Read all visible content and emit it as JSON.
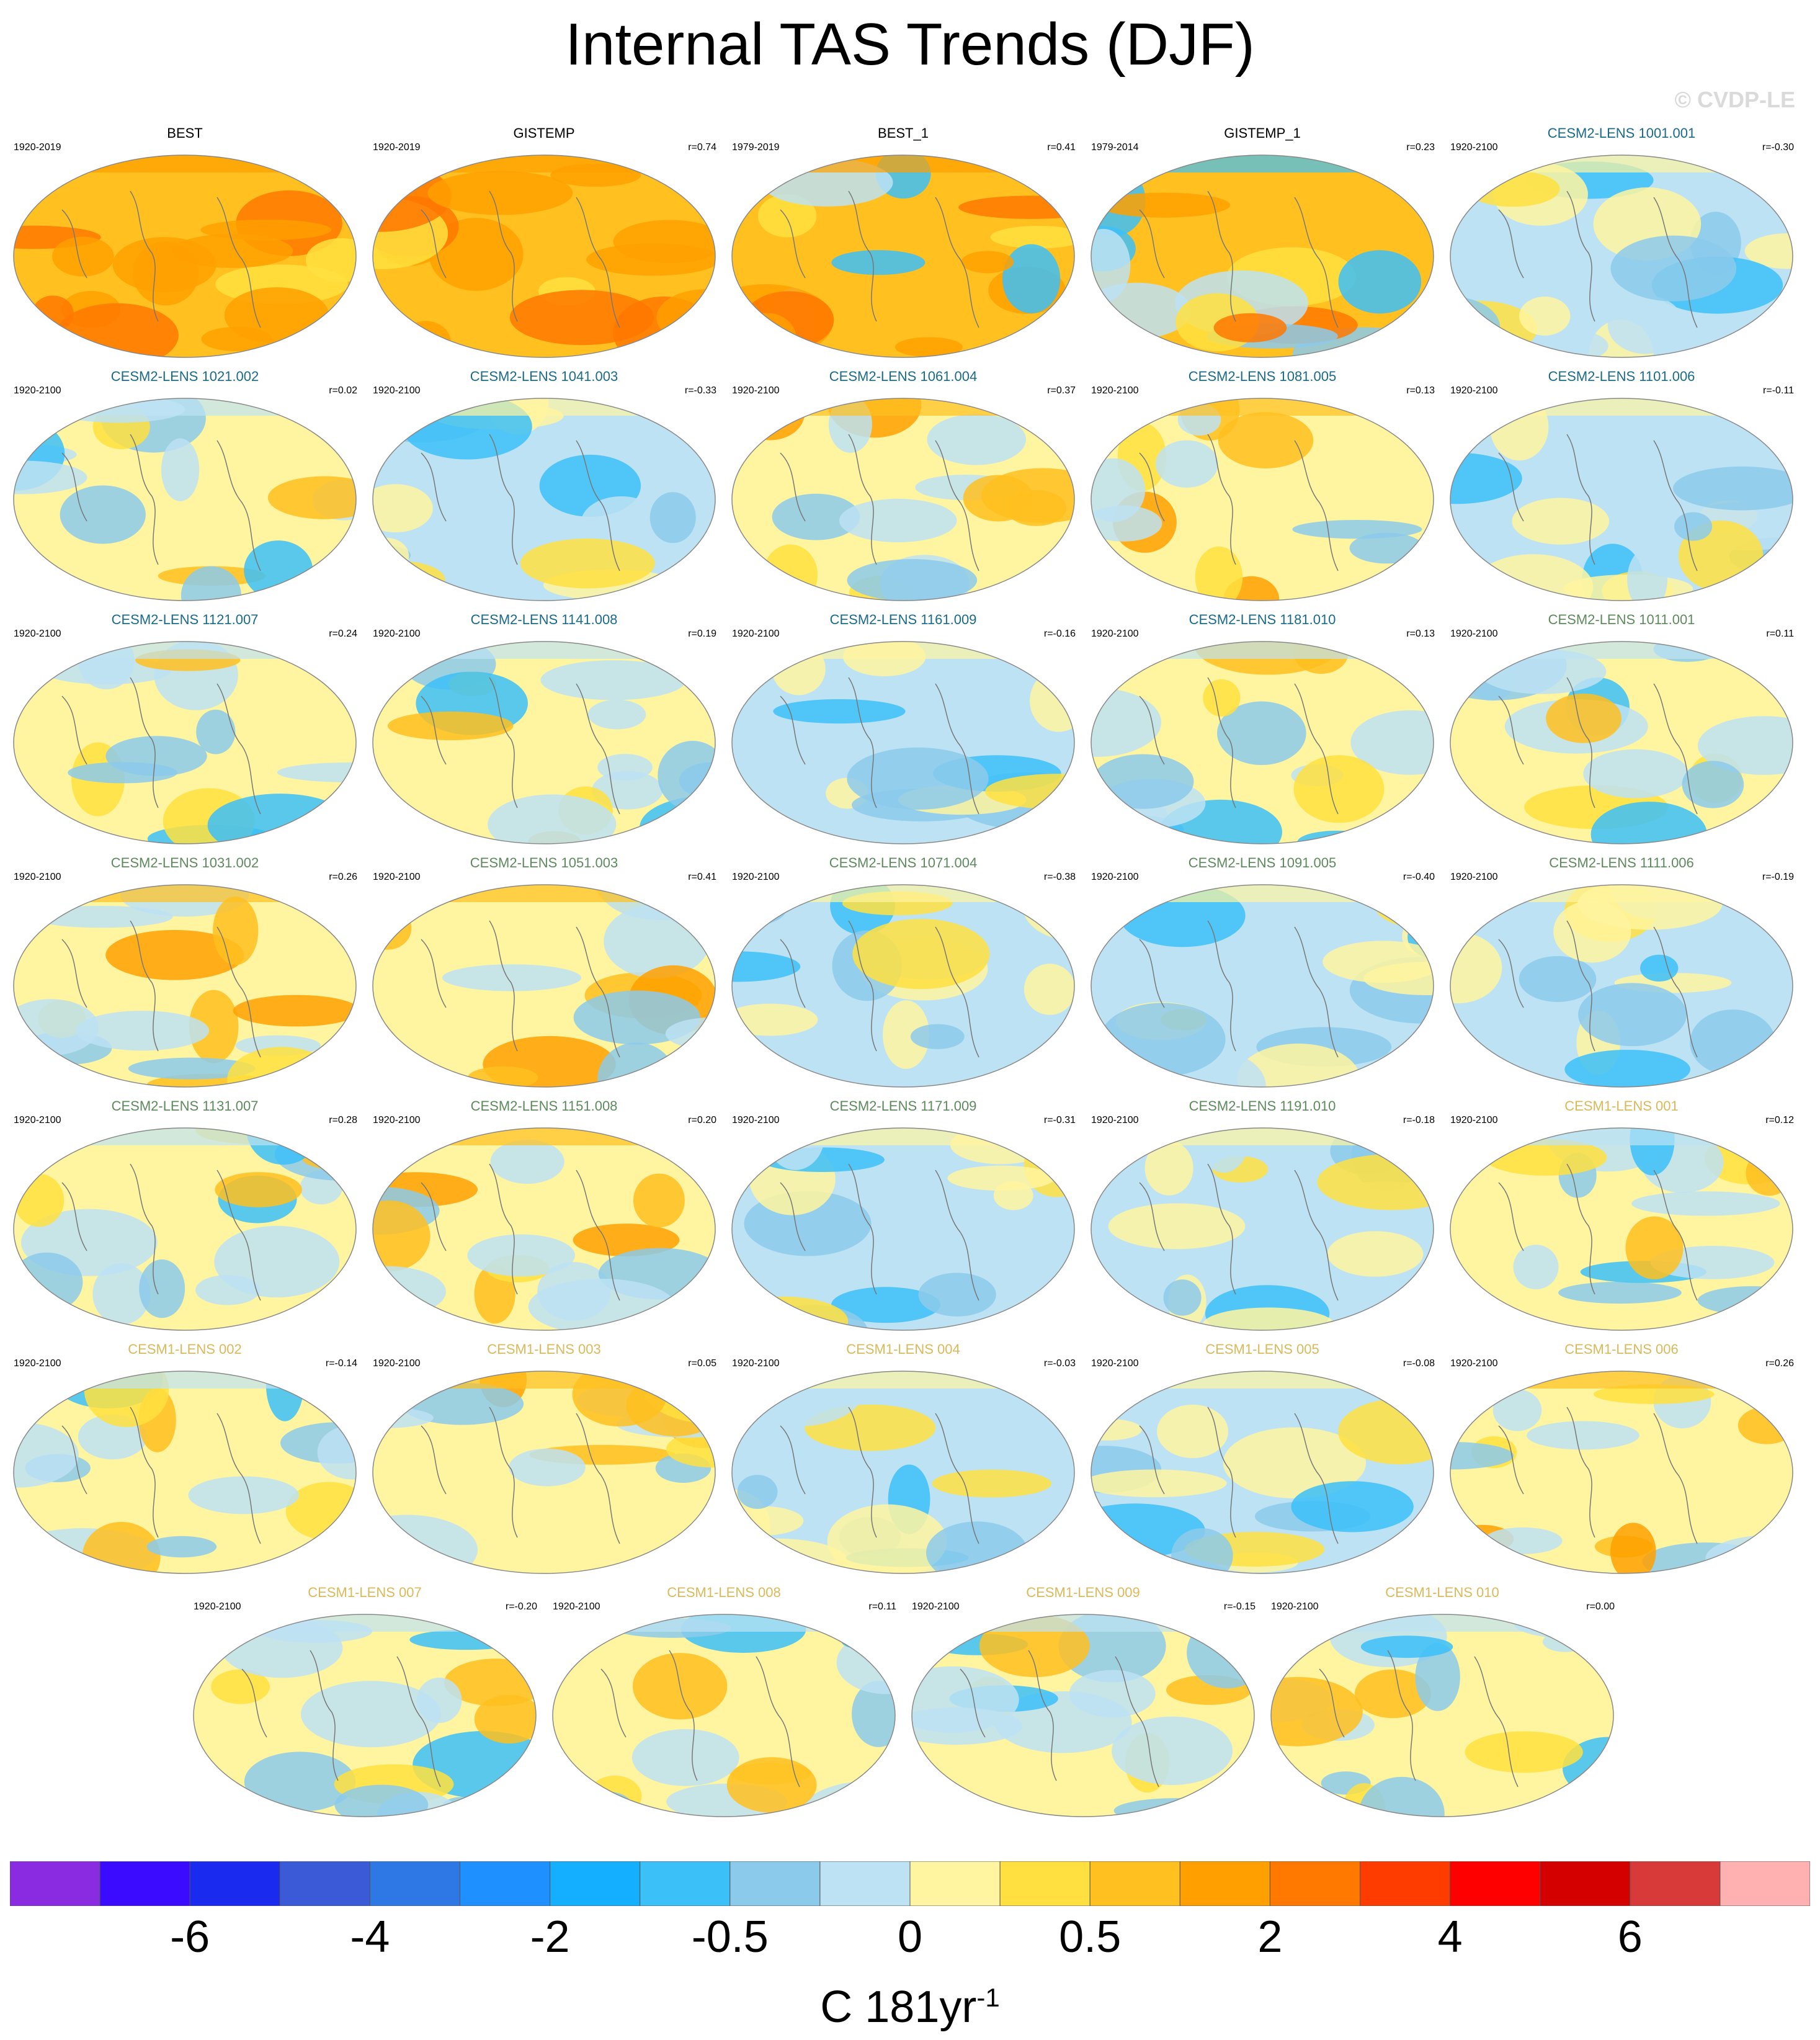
{
  "title": "Internal TAS Trends (DJF)",
  "watermark": "© CVDP-LE",
  "panels": [
    {
      "name": "BEST",
      "period": "1920-2019",
      "corr": "",
      "tc": "#000000",
      "pattern": "warm"
    },
    {
      "name": "GISTEMP",
      "period": "1920-2019",
      "corr": "r=0.74",
      "tc": "#000000",
      "pattern": "warm"
    },
    {
      "name": "BEST_1",
      "period": "1979-2019",
      "corr": "r=0.41",
      "tc": "#000000",
      "pattern": "warm2"
    },
    {
      "name": "GISTEMP_1",
      "period": "1979-2014",
      "corr": "r=0.23",
      "tc": "#000000",
      "pattern": "warm3"
    },
    {
      "name": "CESM2-LENS 1001.001",
      "period": "1920-2100",
      "corr": "r=-0.30",
      "tc": "#1a6a8a",
      "pattern": "cool"
    },
    {
      "name": "CESM2-LENS 1021.002",
      "period": "1920-2100",
      "corr": "r=0.02",
      "tc": "#1a6a8a",
      "pattern": "mixed"
    },
    {
      "name": "CESM2-LENS 1041.003",
      "period": "1920-2100",
      "corr": "r=-0.33",
      "tc": "#1a6a8a",
      "pattern": "cool"
    },
    {
      "name": "CESM2-LENS 1061.004",
      "period": "1920-2100",
      "corr": "r=0.37",
      "tc": "#1a6a8a",
      "pattern": "mixedwarm"
    },
    {
      "name": "CESM2-LENS 1081.005",
      "period": "1920-2100",
      "corr": "r=0.13",
      "tc": "#1a6a8a",
      "pattern": "mixedwarm"
    },
    {
      "name": "CESM2-LENS 1101.006",
      "period": "1920-2100",
      "corr": "r=-0.11",
      "tc": "#1a6a8a",
      "pattern": "cool"
    },
    {
      "name": "CESM2-LENS 1121.007",
      "period": "1920-2100",
      "corr": "r=0.24",
      "tc": "#1a6a8a",
      "pattern": "mixed"
    },
    {
      "name": "CESM2-LENS 1141.008",
      "period": "1920-2100",
      "corr": "r=0.19",
      "tc": "#1a6a8a",
      "pattern": "mixed"
    },
    {
      "name": "CESM2-LENS 1161.009",
      "period": "1920-2100",
      "corr": "r=-0.16",
      "tc": "#1a6a8a",
      "pattern": "cool"
    },
    {
      "name": "CESM2-LENS 1181.010",
      "period": "1920-2100",
      "corr": "r=0.13",
      "tc": "#1a6a8a",
      "pattern": "mixed"
    },
    {
      "name": "CESM2-LENS 1011.001",
      "period": "1920-2100",
      "corr": "r=0.11",
      "tc": "#5d8a5d",
      "pattern": "mixed"
    },
    {
      "name": "CESM2-LENS 1031.002",
      "period": "1920-2100",
      "corr": "r=0.26",
      "tc": "#5d8a5d",
      "pattern": "mixedwarm"
    },
    {
      "name": "CESM2-LENS 1051.003",
      "period": "1920-2100",
      "corr": "r=0.41",
      "tc": "#5d8a5d",
      "pattern": "mixedwarm"
    },
    {
      "name": "CESM2-LENS 1071.004",
      "period": "1920-2100",
      "corr": "r=-0.38",
      "tc": "#5d8a5d",
      "pattern": "cool"
    },
    {
      "name": "CESM2-LENS 1091.005",
      "period": "1920-2100",
      "corr": "r=-0.40",
      "tc": "#5d8a5d",
      "pattern": "cool"
    },
    {
      "name": "CESM2-LENS 1111.006",
      "period": "1920-2100",
      "corr": "r=-0.19",
      "tc": "#5d8a5d",
      "pattern": "cool"
    },
    {
      "name": "CESM2-LENS 1131.007",
      "period": "1920-2100",
      "corr": "r=0.28",
      "tc": "#5d8a5d",
      "pattern": "mixed"
    },
    {
      "name": "CESM2-LENS 1151.008",
      "period": "1920-2100",
      "corr": "r=0.20",
      "tc": "#5d8a5d",
      "pattern": "mixedwarm"
    },
    {
      "name": "CESM2-LENS 1171.009",
      "period": "1920-2100",
      "corr": "r=-0.31",
      "tc": "#5d8a5d",
      "pattern": "cool"
    },
    {
      "name": "CESM2-LENS 1191.010",
      "period": "1920-2100",
      "corr": "r=-0.18",
      "tc": "#5d8a5d",
      "pattern": "cool"
    },
    {
      "name": "CESM1-LENS 001",
      "period": "1920-2100",
      "corr": "r=0.12",
      "tc": "#d9b95a",
      "pattern": "mixed"
    },
    {
      "name": "CESM1-LENS 002",
      "period": "1920-2100",
      "corr": "r=-0.14",
      "tc": "#d9b95a",
      "pattern": "mixed"
    },
    {
      "name": "CESM1-LENS 003",
      "period": "1920-2100",
      "corr": "r=0.05",
      "tc": "#d9b95a",
      "pattern": "mixedwarm"
    },
    {
      "name": "CESM1-LENS 004",
      "period": "1920-2100",
      "corr": "r=-0.03",
      "tc": "#d9b95a",
      "pattern": "cool"
    },
    {
      "name": "CESM1-LENS 005",
      "period": "1920-2100",
      "corr": "r=-0.08",
      "tc": "#d9b95a",
      "pattern": "cool"
    },
    {
      "name": "CESM1-LENS 006",
      "period": "1920-2100",
      "corr": "r=0.26",
      "tc": "#d9b95a",
      "pattern": "mixedwarm"
    },
    {
      "name": "CESM1-LENS 007",
      "period": "1920-2100",
      "corr": "r=-0.20",
      "tc": "#d9b95a",
      "pattern": "mixed"
    },
    {
      "name": "CESM1-LENS 008",
      "period": "1920-2100",
      "corr": "r=0.11",
      "tc": "#d9b95a",
      "pattern": "mixed"
    },
    {
      "name": "CESM1-LENS 009",
      "period": "1920-2100",
      "corr": "r=-0.15",
      "tc": "#d9b95a",
      "pattern": "mixed"
    },
    {
      "name": "CESM1-LENS 010",
      "period": "1920-2100",
      "corr": "r=0.00",
      "tc": "#d9b95a",
      "pattern": "mixed"
    }
  ],
  "colorbar": {
    "colors": [
      "#8a2be2",
      "#3a0bff",
      "#1a2aee",
      "#3a5ad8",
      "#2e78e6",
      "#1e90ff",
      "#14b0ff",
      "#3cc0f8",
      "#8ccaeb",
      "#bde2f3",
      "#fff5a0",
      "#ffe040",
      "#ffc020",
      "#ffa000",
      "#ff7800",
      "#ff3c00",
      "#ff0000",
      "#d40000",
      "#d83a3a",
      "#ffb0b0"
    ],
    "labels": [
      "-6",
      "-4",
      "-2",
      "-0.5",
      "0",
      "0.5",
      "2",
      "4",
      "6"
    ],
    "units_main": "C 181yr",
    "units_sup": "-1"
  }
}
